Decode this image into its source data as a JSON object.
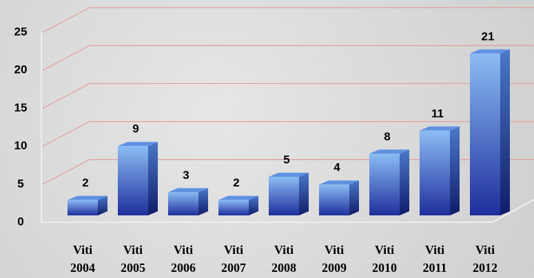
{
  "chart_data": {
    "type": "bar",
    "categories": [
      "Viti 2004",
      "Viti 2005",
      "Viti 2006",
      "Viti 2007",
      "Viti 2008",
      "Viti 2009",
      "Viti 2010",
      "Viti 2011",
      "Viti 2012"
    ],
    "values": [
      2,
      9,
      3,
      2,
      5,
      4,
      8,
      11,
      21
    ],
    "color": "#4f86e0",
    "ylim": [
      0,
      25
    ],
    "yticks": [
      0,
      5,
      10,
      15,
      20,
      25
    ],
    "grid": true
  }
}
